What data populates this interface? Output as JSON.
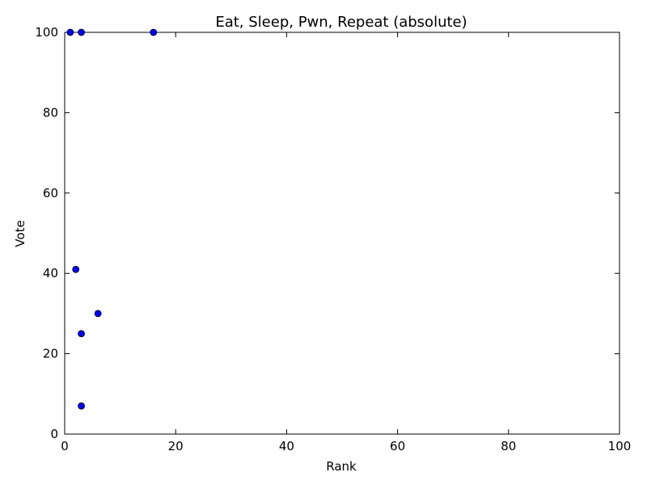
{
  "chart_data": {
    "type": "scatter",
    "title": "Eat, Sleep, Pwn, Repeat (absolute)",
    "xlabel": "Rank",
    "ylabel": "Vote",
    "xlim": [
      0,
      100
    ],
    "ylim": [
      0,
      100
    ],
    "xticks": [
      0,
      20,
      40,
      60,
      80,
      100
    ],
    "yticks": [
      0,
      20,
      40,
      60,
      80,
      100
    ],
    "grid": false,
    "marker_color": "#0000ff",
    "marker_edge_color": "#000000",
    "points": [
      {
        "x": 1,
        "y": 100
      },
      {
        "x": 3,
        "y": 100
      },
      {
        "x": 16,
        "y": 100
      },
      {
        "x": 2,
        "y": 41
      },
      {
        "x": 6,
        "y": 30
      },
      {
        "x": 3,
        "y": 25
      },
      {
        "x": 3,
        "y": 7
      }
    ]
  }
}
